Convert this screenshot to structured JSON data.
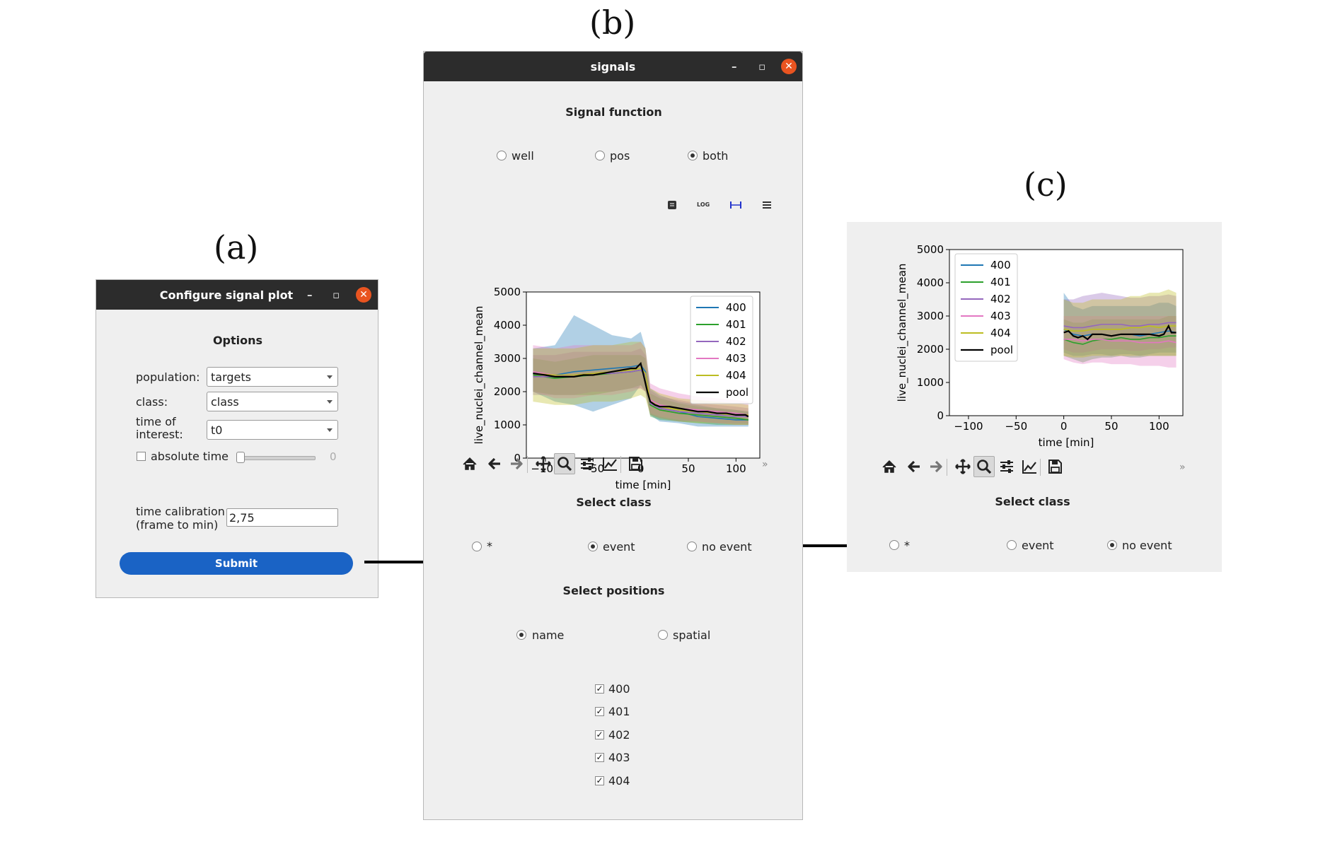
{
  "panel_labels": {
    "a": "(a)",
    "b": "(b)",
    "c": "(c)"
  },
  "config_window": {
    "title": "Configure signal plot",
    "section_title": "Options",
    "population_label": "population:",
    "population_value": "targets",
    "class_label": "class:",
    "class_value": "class",
    "time_of_interest_label_1": "time of",
    "time_of_interest_label_2": "interest:",
    "time_of_interest_value": "t0",
    "absolute_time_label": "absolute time",
    "absolute_time_checked": false,
    "slider_value": "0",
    "time_calibration_label_1": "time calibration",
    "time_calibration_label_2": "(frame to min)",
    "time_calibration_value": "2,75",
    "submit_label": "Submit"
  },
  "signals_window": {
    "title": "signals",
    "signal_function_title": "Signal function",
    "signal_function_options": [
      "well",
      "pos",
      "both"
    ],
    "signal_function_selected": "both",
    "plot_tool_icons": [
      "info-icon",
      "log-scale-icon",
      "interval-icon",
      "menu-icon"
    ],
    "log_icon_text": "LOG",
    "select_class_title": "Select class",
    "class_options": [
      "*",
      "event",
      "no event"
    ],
    "class_selected": "event",
    "select_positions_title": "Select positions",
    "position_modes": [
      "name",
      "spatial"
    ],
    "position_mode_selected": "name",
    "positions": [
      {
        "label": "400",
        "checked": true
      },
      {
        "label": "401",
        "checked": true
      },
      {
        "label": "402",
        "checked": true
      },
      {
        "label": "403",
        "checked": true
      },
      {
        "label": "404",
        "checked": true
      }
    ],
    "toolbar_overflow": "»"
  },
  "panel_c": {
    "select_class_title": "Select class",
    "class_options": [
      "*",
      "event",
      "no event"
    ],
    "class_selected": "no event",
    "toolbar_overflow": "»"
  },
  "toolbar_icons": [
    "home-icon",
    "back-icon",
    "forward-icon",
    "pan-icon",
    "zoom-icon",
    "configure-subplots-icon",
    "edit-axes-icon",
    "save-icon"
  ],
  "colors": {
    "title_bar": "#2c2c2c",
    "close_button": "#e95420",
    "submit_button": "#1a63c5",
    "window_bg": "#efefef"
  },
  "chart_data": [
    {
      "type": "line",
      "title": "",
      "xlabel": "time [min]",
      "ylabel": "live_nuclei_channel_mean",
      "xlim": [
        -120,
        125
      ],
      "ylim": [
        0,
        5000
      ],
      "xticks": [
        -100,
        -50,
        0,
        50,
        100
      ],
      "yticks": [
        0,
        1000,
        2000,
        3000,
        4000,
        5000
      ],
      "xtick_labels": [
        "−100",
        "−50",
        "0",
        "50",
        "100"
      ],
      "ytick_labels": [
        "0",
        "1000",
        "2000",
        "3000",
        "4000",
        "5000"
      ],
      "legend_position": "top-right",
      "grid": false,
      "series": [
        {
          "name": "400",
          "color": "#1f77b4",
          "x": [
            -113,
            -90,
            -70,
            -50,
            -30,
            -10,
            0,
            5,
            10,
            20,
            40,
            60,
            80,
            100,
            113
          ],
          "y": [
            2550,
            2500,
            2600,
            2650,
            2700,
            2750,
            2800,
            2600,
            1700,
            1500,
            1400,
            1250,
            1200,
            1150,
            1150
          ],
          "lo": [
            2000,
            1700,
            1600,
            1400,
            1600,
            1800,
            2200,
            2000,
            1300,
            1100,
            1050,
            950,
            950,
            950,
            950
          ],
          "hi": [
            3300,
            3400,
            4300,
            4000,
            3700,
            3600,
            3800,
            3300,
            2100,
            1900,
            1700,
            1600,
            1500,
            1450,
            1400
          ]
        },
        {
          "name": "401",
          "color": "#2ca02c",
          "x": [
            -113,
            -90,
            -70,
            -50,
            -30,
            -10,
            0,
            5,
            10,
            20,
            40,
            60,
            80,
            100,
            113
          ],
          "y": [
            2500,
            2400,
            2450,
            2500,
            2550,
            2600,
            2650,
            2500,
            1600,
            1450,
            1350,
            1300,
            1250,
            1200,
            1150
          ],
          "lo": [
            2000,
            1900,
            1900,
            1900,
            2000,
            2100,
            2200,
            2000,
            1250,
            1150,
            1100,
            1050,
            1000,
            1000,
            1000
          ],
          "hi": [
            3000,
            2900,
            3000,
            3100,
            3100,
            3100,
            3100,
            3000,
            1950,
            1800,
            1650,
            1550,
            1500,
            1450,
            1400
          ]
        },
        {
          "name": "402",
          "color": "#9467bd",
          "x": [
            -113,
            -90,
            -70,
            -50,
            -30,
            -10,
            0,
            5,
            10,
            20,
            40,
            60,
            80,
            100,
            113
          ],
          "y": [
            2450,
            2450,
            2500,
            2550,
            2550,
            2600,
            2650,
            2500,
            1650,
            1500,
            1400,
            1350,
            1300,
            1250,
            1250
          ],
          "lo": [
            1900,
            1900,
            1900,
            2000,
            2000,
            2100,
            2100,
            2000,
            1300,
            1200,
            1100,
            1100,
            1050,
            1050,
            1050
          ],
          "hi": [
            3100,
            3100,
            3200,
            3200,
            3200,
            3200,
            3300,
            3100,
            2050,
            1850,
            1750,
            1650,
            1600,
            1550,
            1500
          ]
        },
        {
          "name": "403",
          "color": "#e377c2",
          "x": [
            -113,
            -90,
            -70,
            -50,
            -30,
            -10,
            0,
            5,
            10,
            20,
            40,
            60,
            80,
            100,
            113
          ],
          "y": [
            2600,
            2500,
            2500,
            2550,
            2600,
            2650,
            2700,
            2550,
            1750,
            1600,
            1500,
            1450,
            1400,
            1350,
            1300
          ],
          "lo": [
            2000,
            1800,
            1800,
            1900,
            1900,
            2000,
            2100,
            2000,
            1350,
            1250,
            1150,
            1100,
            1050,
            1000,
            1000
          ],
          "hi": [
            3400,
            3300,
            3400,
            3400,
            3400,
            3400,
            3500,
            3300,
            2250,
            2100,
            1950,
            1850,
            1800,
            1750,
            1700
          ]
        },
        {
          "name": "404",
          "color": "#bcbd22",
          "x": [
            -113,
            -90,
            -70,
            -50,
            -30,
            -10,
            0,
            5,
            10,
            20,
            40,
            60,
            80,
            100,
            113
          ],
          "y": [
            2550,
            2500,
            2500,
            2550,
            2600,
            2650,
            2700,
            2550,
            1700,
            1550,
            1450,
            1400,
            1350,
            1300,
            1300
          ],
          "lo": [
            1700,
            1600,
            1600,
            1700,
            1700,
            1800,
            1900,
            1800,
            1300,
            1200,
            1100,
            1050,
            1050,
            1000,
            1000
          ],
          "hi": [
            3300,
            3300,
            3300,
            3400,
            3400,
            3500,
            3500,
            3300,
            2100,
            1950,
            1800,
            1750,
            1700,
            1650,
            1600
          ]
        },
        {
          "name": "pool",
          "color": "#000000",
          "x": [
            -113,
            -100,
            -90,
            -80,
            -70,
            -60,
            -50,
            -40,
            -30,
            -20,
            -10,
            -5,
            0,
            3,
            7,
            10,
            15,
            20,
            30,
            40,
            50,
            60,
            70,
            80,
            90,
            100,
            110,
            113
          ],
          "y": [
            2550,
            2500,
            2450,
            2450,
            2450,
            2500,
            2500,
            2550,
            2600,
            2650,
            2700,
            2700,
            2850,
            2500,
            2000,
            1700,
            1600,
            1550,
            1550,
            1500,
            1450,
            1400,
            1400,
            1350,
            1350,
            1300,
            1300,
            1250
          ]
        }
      ]
    },
    {
      "type": "line",
      "title": "",
      "xlabel": "time [min]",
      "ylabel": "live_nuclei_channel_mean",
      "xlim": [
        -120,
        125
      ],
      "ylim": [
        0,
        5000
      ],
      "xticks": [
        -100,
        -50,
        0,
        50,
        100
      ],
      "yticks": [
        0,
        1000,
        2000,
        3000,
        4000,
        5000
      ],
      "xtick_labels": [
        "−100",
        "−50",
        "0",
        "50",
        "100"
      ],
      "ytick_labels": [
        "0",
        "1000",
        "2000",
        "3000",
        "4000",
        "5000"
      ],
      "legend_position": "top-left",
      "grid": false,
      "series": [
        {
          "name": "400",
          "color": "#1f77b4",
          "x": [
            0,
            10,
            20,
            30,
            40,
            50,
            60,
            70,
            80,
            90,
            100,
            110,
            118
          ],
          "y": [
            2600,
            2450,
            2400,
            2450,
            2450,
            2400,
            2450,
            2450,
            2400,
            2450,
            2500,
            2550,
            2500
          ],
          "lo": [
            1900,
            1800,
            1800,
            1850,
            1850,
            1800,
            1850,
            1850,
            1800,
            1850,
            1900,
            1900,
            1900
          ],
          "hi": [
            3700,
            3300,
            3200,
            3300,
            3300,
            3300,
            3300,
            3300,
            3300,
            3300,
            3400,
            3400,
            3300
          ]
        },
        {
          "name": "401",
          "color": "#2ca02c",
          "x": [
            0,
            10,
            20,
            30,
            40,
            50,
            60,
            70,
            80,
            90,
            100,
            110,
            118
          ],
          "y": [
            2300,
            2200,
            2150,
            2250,
            2300,
            2300,
            2350,
            2300,
            2300,
            2350,
            2350,
            2400,
            2400
          ],
          "lo": [
            1800,
            1700,
            1600,
            1700,
            1750,
            1750,
            1800,
            1750,
            1750,
            1800,
            1800,
            1800,
            1800
          ],
          "hi": [
            2900,
            2800,
            2800,
            2900,
            2900,
            2900,
            2900,
            2900,
            2900,
            2900,
            2900,
            3000,
            3000
          ]
        },
        {
          "name": "402",
          "color": "#9467bd",
          "x": [
            0,
            10,
            20,
            30,
            40,
            50,
            60,
            70,
            80,
            90,
            100,
            110,
            118
          ],
          "y": [
            2700,
            2650,
            2650,
            2700,
            2750,
            2750,
            2750,
            2700,
            2700,
            2750,
            2750,
            2800,
            2800
          ],
          "lo": [
            2000,
            1900,
            1900,
            1950,
            2000,
            2000,
            2000,
            1950,
            1950,
            2000,
            2000,
            2050,
            2050
          ],
          "hi": [
            3500,
            3500,
            3600,
            3650,
            3700,
            3650,
            3600,
            3550,
            3550,
            3600,
            3600,
            3650,
            3600
          ]
        },
        {
          "name": "403",
          "color": "#e377c2",
          "x": [
            0,
            10,
            20,
            30,
            40,
            50,
            60,
            70,
            80,
            90,
            100,
            110,
            118
          ],
          "y": [
            2300,
            2300,
            2250,
            2300,
            2300,
            2250,
            2250,
            2250,
            2200,
            2200,
            2200,
            2250,
            2200
          ],
          "lo": [
            1700,
            1600,
            1550,
            1600,
            1600,
            1550,
            1550,
            1550,
            1500,
            1500,
            1500,
            1450,
            1450
          ],
          "hi": [
            3000,
            3000,
            3000,
            3000,
            3000,
            3000,
            3000,
            3000,
            3000,
            3000,
            3000,
            3000,
            3000
          ]
        },
        {
          "name": "404",
          "color": "#bcbd22",
          "x": [
            0,
            10,
            20,
            30,
            40,
            50,
            60,
            70,
            80,
            90,
            100,
            110,
            118
          ],
          "y": [
            2600,
            2550,
            2550,
            2600,
            2600,
            2600,
            2600,
            2650,
            2650,
            2700,
            2650,
            2700,
            2700
          ],
          "lo": [
            1800,
            1750,
            1750,
            1800,
            1800,
            1800,
            1800,
            1800,
            1800,
            1800,
            1800,
            1800,
            1800
          ],
          "hi": [
            3500,
            3400,
            3400,
            3500,
            3500,
            3500,
            3500,
            3600,
            3600,
            3700,
            3700,
            3800,
            3700
          ]
        },
        {
          "name": "pool",
          "color": "#000000",
          "x": [
            0,
            5,
            10,
            15,
            20,
            25,
            30,
            40,
            50,
            60,
            70,
            80,
            90,
            100,
            105,
            110,
            113,
            118
          ],
          "y": [
            2500,
            2550,
            2400,
            2350,
            2400,
            2300,
            2450,
            2450,
            2400,
            2450,
            2450,
            2450,
            2450,
            2400,
            2450,
            2700,
            2500,
            2500
          ]
        }
      ]
    }
  ]
}
